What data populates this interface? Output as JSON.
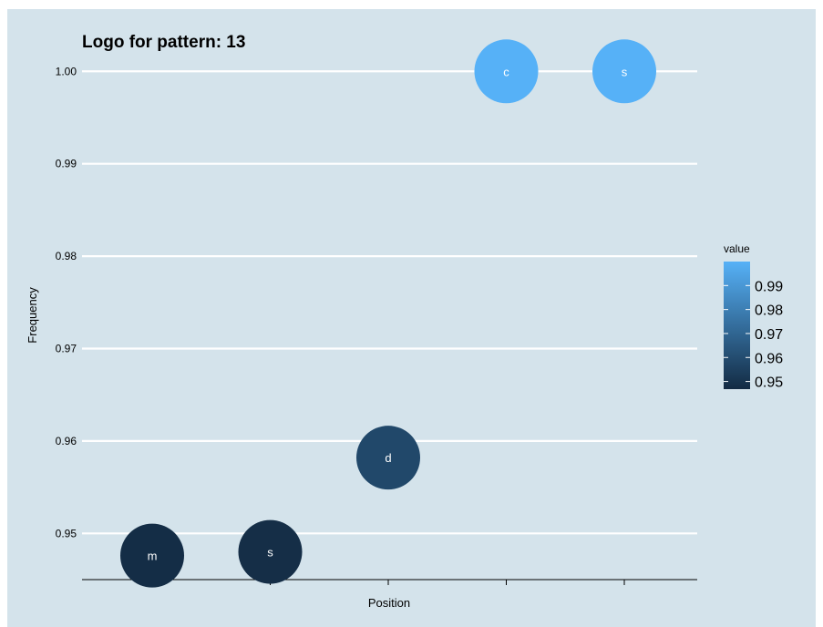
{
  "chart_data": {
    "type": "scatter",
    "title": "Logo for pattern:  13",
    "xlabel": "Position",
    "ylabel": "Frequency",
    "x_categories": [
      "1",
      "2",
      "3",
      "4",
      "5"
    ],
    "x_tick_labels_shown": false,
    "ylim": [
      0.945,
      1.002
    ],
    "yticks": [
      0.95,
      0.96,
      0.97,
      0.98,
      0.99,
      1.0
    ],
    "ytick_labels": [
      "0.95",
      "0.96",
      "0.97",
      "0.98",
      "0.99",
      "1.00"
    ],
    "grid": "horizontal",
    "points": [
      {
        "position": 1,
        "frequency": 0.9476,
        "value": 0.9476,
        "label": "m"
      },
      {
        "position": 2,
        "frequency": 0.948,
        "value": 0.948,
        "label": "s"
      },
      {
        "position": 3,
        "frequency": 0.9582,
        "value": 0.9582,
        "label": "d"
      },
      {
        "position": 4,
        "frequency": 1.0,
        "value": 1.0,
        "label": "c"
      },
      {
        "position": 5,
        "frequency": 1.0,
        "value": 1.0,
        "label": "s"
      }
    ],
    "legend": {
      "title": "value",
      "placement": "right",
      "ticks": [
        0.95,
        0.96,
        0.97,
        0.98,
        0.99
      ],
      "tick_labels": [
        "0.95",
        "0.96",
        "0.97",
        "0.98",
        "0.99"
      ],
      "range": [
        0.9468,
        1.0
      ],
      "color_low": "#132B43",
      "color_high": "#56B1F7"
    },
    "colors": {
      "panel_background": "#d4e3eb",
      "gridline": "#ffffff"
    }
  }
}
